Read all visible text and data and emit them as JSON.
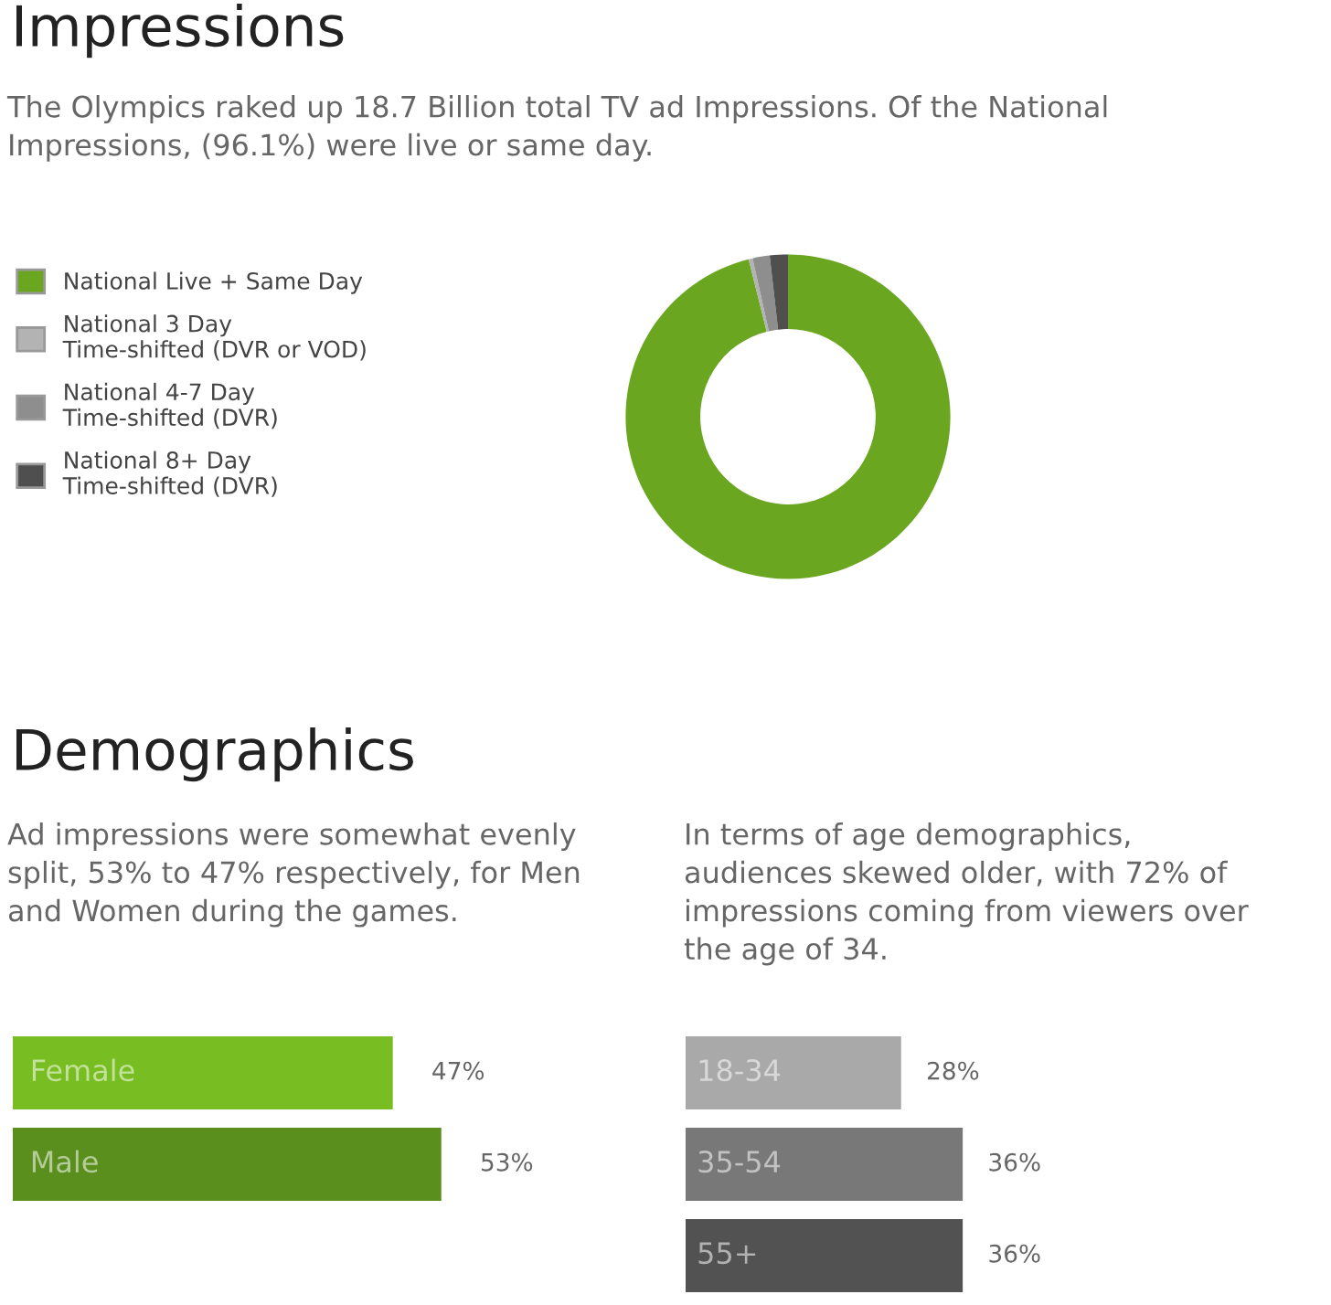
{
  "chart_data": [
    {
      "type": "donut",
      "title": "Impressions",
      "subtitle": "The Olympics raked up 18.7 Billion total TV ad Impressions. Of the National Impressions, (96.1%) were live or same day.",
      "categories": [
        "National Live + Same Day",
        "National 3 Day Time-shifted (DVR or VOD)",
        "National 4-7 Day Time-shifted (DVR)",
        "National 8+ Day Time-shifted (DVR)"
      ],
      "values": [
        96.1,
        0.4,
        1.7,
        1.8
      ],
      "colors": [
        "#6aa620",
        "#b3b3b3",
        "#8e8e8e",
        "#4f4f4f"
      ],
      "legend": "left"
    },
    {
      "type": "bar",
      "orientation": "horizontal",
      "title": "Demographics",
      "subtitle": "Ad impressions were somewhat evenly split, 53% to 47% respectively, for Men and Women during the games.",
      "categories": [
        "Female",
        "Male"
      ],
      "values": [
        47,
        53
      ],
      "colors": [
        "#78bd22",
        "#5a8f1e"
      ],
      "value_labels": [
        "47%",
        "53%"
      ],
      "tick_labels": false
    },
    {
      "type": "bar",
      "orientation": "horizontal",
      "subtitle": "In terms of age demographics, audiences skewed older, with 72% of impressions coming from viewers over the age of 34.",
      "categories": [
        "18-34",
        "35-54",
        "55+"
      ],
      "values": [
        28,
        36,
        36
      ],
      "colors": [
        "#a9a9a9",
        "#787878",
        "#525252"
      ],
      "value_labels": [
        "28%",
        "36%",
        "36%"
      ],
      "tick_labels": false
    }
  ]
}
